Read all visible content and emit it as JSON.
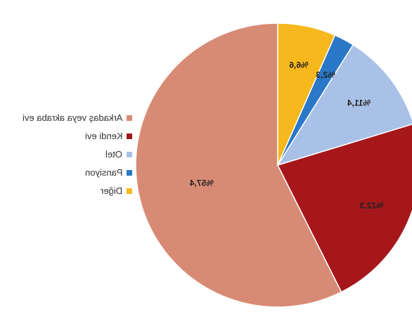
{
  "chart_data": {
    "type": "pie",
    "title": "",
    "slices": [
      {
        "label": "Arkadaş veya akraba evi",
        "value": 57.4,
        "display": "%57,4",
        "color": "#D88B74"
      },
      {
        "label": "Kendi evi",
        "value": 22.3,
        "display": "%22,3",
        "color": "#A6171B"
      },
      {
        "label": "Otel",
        "value": 11.4,
        "display": "%11,4",
        "color": "#A9C1E6"
      },
      {
        "label": "Pansiyon",
        "value": 2.3,
        "display": "%2,3",
        "color": "#2A78C8"
      },
      {
        "label": "Diğer",
        "value": 6.6,
        "display": "%6,6",
        "color": "#F6B81C"
      }
    ],
    "legend_position": "left",
    "orientation": "mirrored"
  },
  "footer": {
    "caption": ""
  }
}
